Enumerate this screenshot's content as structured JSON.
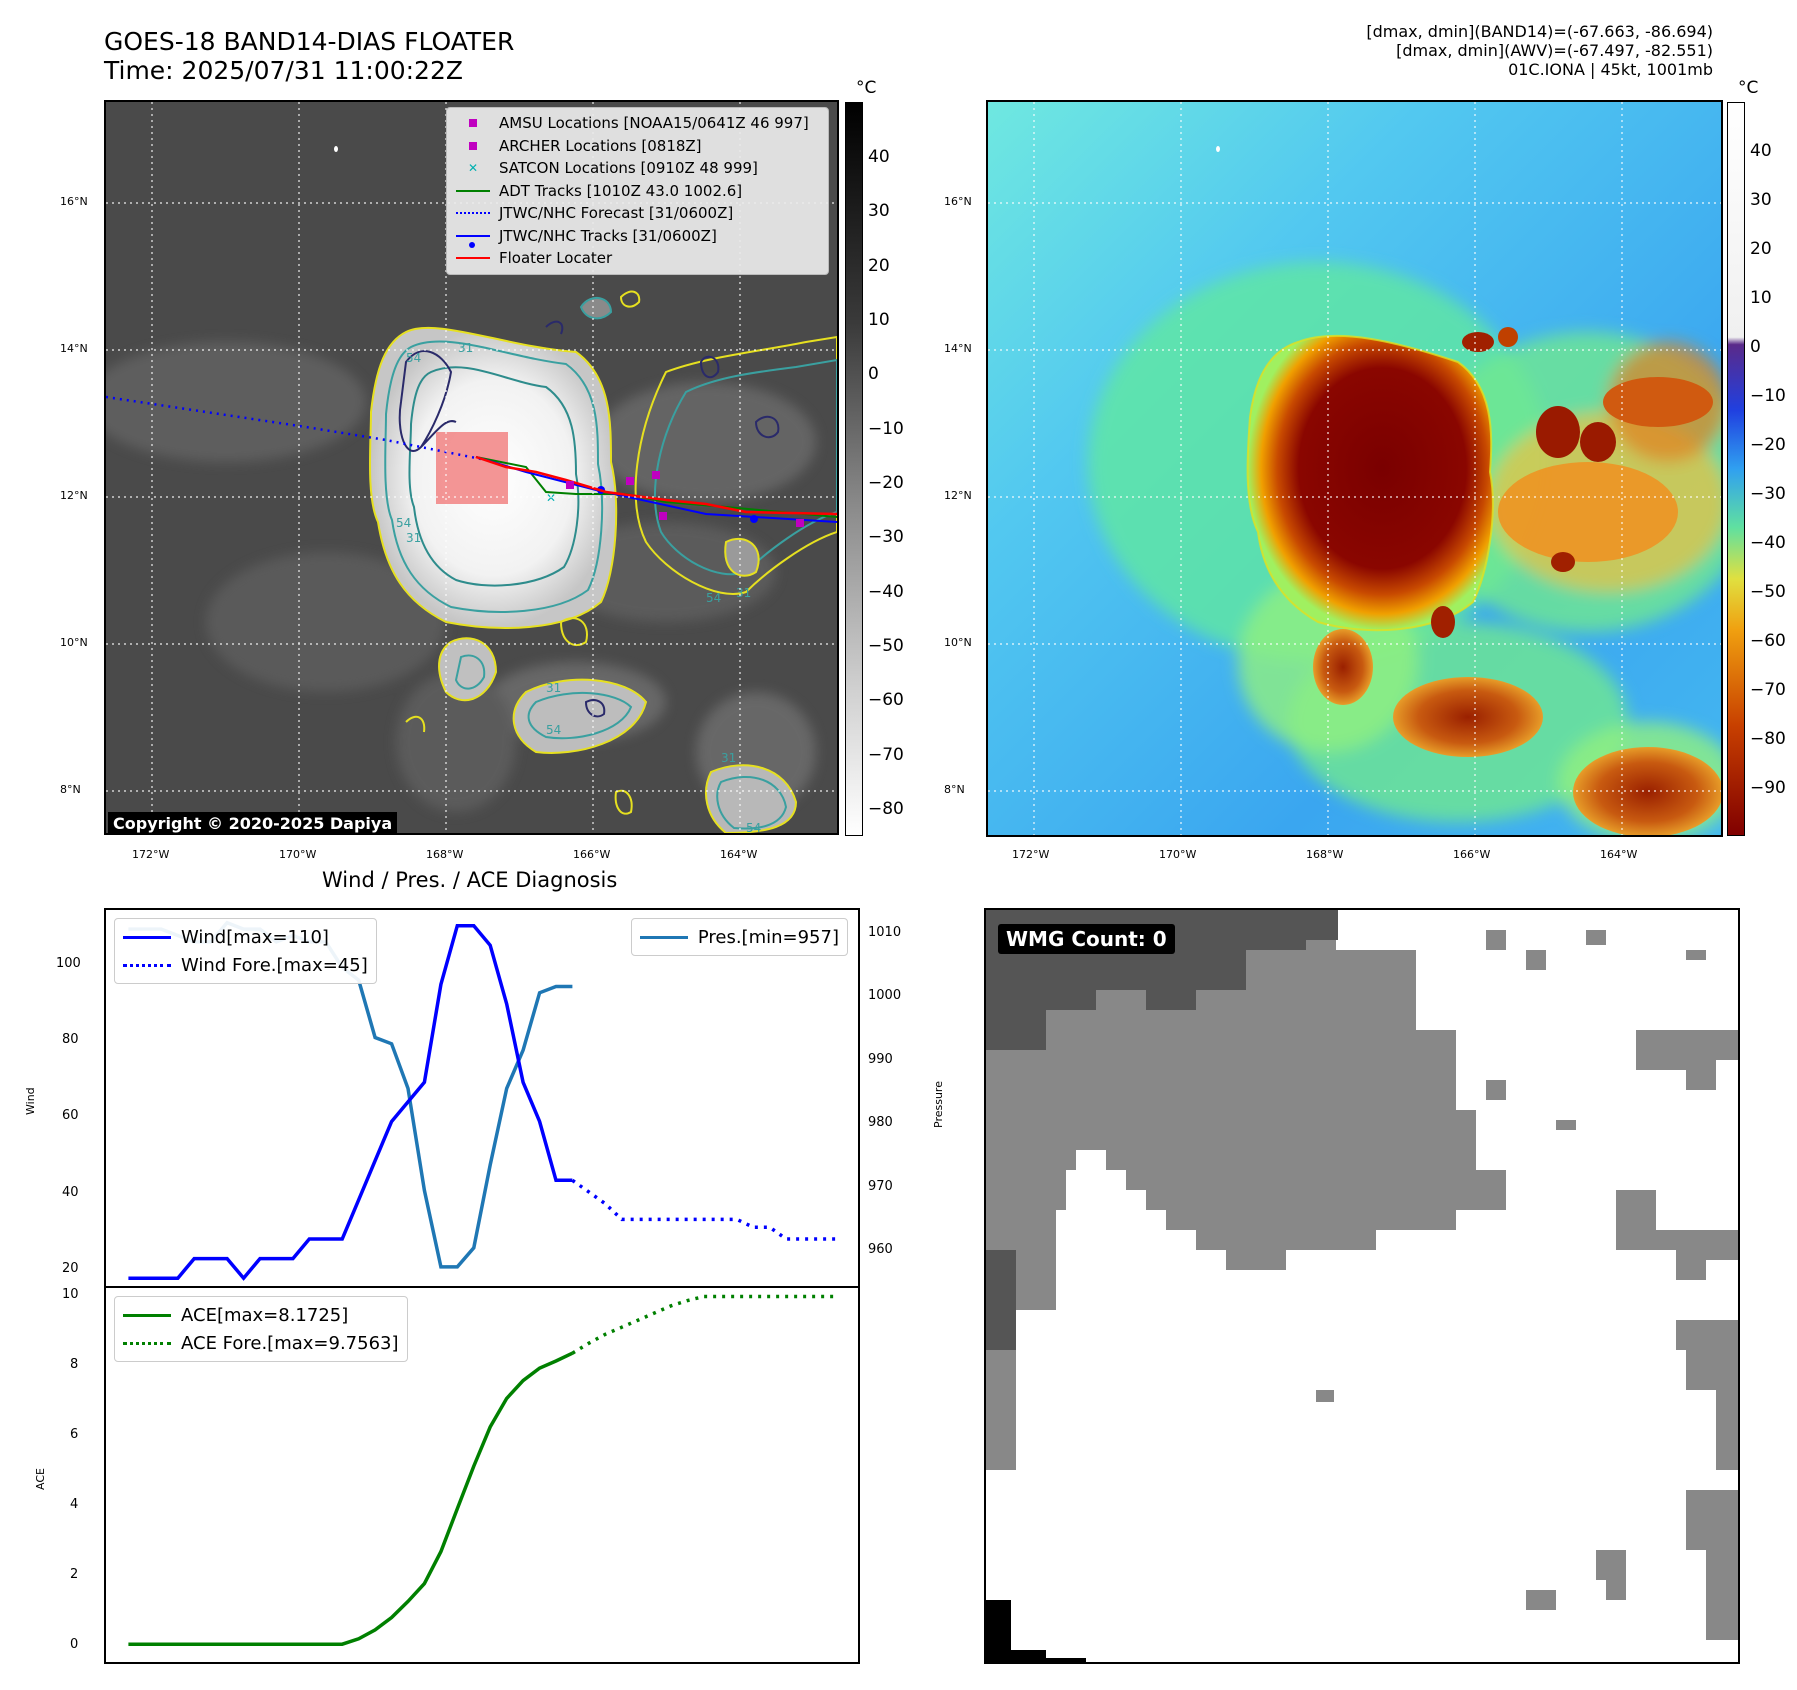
{
  "header": {
    "title_line1": "GOES-18 BAND14-DIAS FLOATER",
    "title_line2": "Time: 2025/07/31 11:00:22Z",
    "stats_line1": "[dmax, dmin](BAND14)=(-67.663, -86.694)",
    "stats_line2": "[dmax, dmin](AWV)=(-67.497, -82.551)",
    "stats_line3": "01C.IONA | 45kt, 1001mb"
  },
  "map_axes": {
    "lat_labels": [
      "16°N",
      "14°N",
      "12°N",
      "10°N",
      "8°N"
    ],
    "lon_labels": [
      "172°W",
      "170°W",
      "168°W",
      "166°W",
      "164°W"
    ]
  },
  "colorbar_left": {
    "unit": "°C",
    "ticks": [
      "40",
      "30",
      "20",
      "10",
      "0",
      "−10",
      "−20",
      "−30",
      "−40",
      "−50",
      "−60",
      "−70",
      "−80"
    ]
  },
  "colorbar_right": {
    "unit": "°C",
    "ticks": [
      "40",
      "30",
      "20",
      "10",
      "0",
      "−10",
      "−20",
      "−30",
      "−40",
      "−50",
      "−60",
      "−70",
      "−80",
      "−90"
    ]
  },
  "legend": {
    "items": [
      {
        "label": "AMSU Locations [NOAA15/0641Z 46 997]",
        "color": "#c000c0",
        "marker": "square"
      },
      {
        "label": "ARCHER Locations [0818Z]",
        "color": "#c000c0",
        "marker": "square"
      },
      {
        "label": "SATCON Locations [0910Z 48 999]",
        "color": "#00b0b0",
        "marker": "x"
      },
      {
        "label": "ADT Tracks [1010Z 43.0 1002.6]",
        "color": "#008000",
        "marker": "line"
      },
      {
        "label": "JTWC/NHC Forecast [31/0600Z]",
        "color": "#0000ff",
        "marker": "dotted"
      },
      {
        "label": "JTWC/NHC Tracks [31/0600Z]",
        "color": "#0000ff",
        "marker": "line-dot"
      },
      {
        "label": "Floater Locater",
        "color": "#ff0000",
        "marker": "line"
      }
    ]
  },
  "copyright": "Copyright © 2020-2025 Dapiya",
  "contour_labels": [
    "31",
    "54",
    "54",
    "31",
    "54",
    "31",
    "31",
    "54",
    "54",
    "31"
  ],
  "diag": {
    "title": "Wind / Pres. / ACE Diagnosis",
    "wind_ylabel": "Wind",
    "pres_ylabel": "Pressure",
    "ace_ylabel": "ACE",
    "legend_wind": "Wind[max=110]",
    "legend_wind_fore": "Wind Fore.[max=45]",
    "legend_pres": "Pres.[min=957]",
    "legend_ace": "ACE[max=8.1725]",
    "legend_ace_fore": "ACE Fore.[max=9.7563]",
    "wind_ticks": [
      "100",
      "80",
      "60",
      "40",
      "20"
    ],
    "pres_ticks": [
      "1010",
      "1000",
      "990",
      "980",
      "970",
      "960"
    ],
    "ace_ticks": [
      "10",
      "8",
      "6",
      "4",
      "2",
      "0"
    ]
  },
  "wmg": {
    "label": "WMG Count: 0"
  },
  "chart_data": [
    {
      "type": "line",
      "title": "Wind / Pres. / ACE Diagnosis",
      "ylabel": "Wind",
      "ylim": [
        18,
        114
      ],
      "series": [
        {
          "name": "Wind[max=110]",
          "color": "#0000ff",
          "style": "solid",
          "x": [
            0,
            1,
            2,
            3,
            4,
            5,
            6,
            7,
            8,
            9,
            10,
            11,
            12,
            13,
            14,
            15,
            16,
            17,
            18,
            19,
            20,
            21,
            22,
            23,
            24,
            25,
            26,
            27
          ],
          "values": [
            20,
            20,
            20,
            20,
            25,
            25,
            25,
            20,
            25,
            25,
            25,
            30,
            30,
            30,
            40,
            50,
            60,
            65,
            70,
            95,
            110,
            110,
            105,
            90,
            70,
            60,
            45,
            45
          ]
        },
        {
          "name": "Wind Fore.[max=45]",
          "color": "#0000ff",
          "style": "dotted",
          "x": [
            27,
            28,
            29,
            30,
            31,
            32,
            33,
            34,
            35,
            36,
            37,
            38,
            39,
            40,
            41,
            42,
            43
          ],
          "values": [
            45,
            42,
            39,
            35,
            35,
            35,
            35,
            35,
            35,
            35,
            35,
            33,
            33,
            30,
            30,
            30,
            30
          ]
        }
      ]
    },
    {
      "type": "line",
      "ylabel": "Pressure",
      "ylim": [
        954,
        1013
      ],
      "series": [
        {
          "name": "Pres.[min=957]",
          "color": "#1f77b4",
          "style": "solid",
          "x": [
            0,
            1,
            2,
            3,
            4,
            5,
            6,
            7,
            8,
            9,
            10,
            11,
            12,
            13,
            14,
            15,
            16,
            17,
            18,
            19,
            20,
            21,
            22,
            23,
            24,
            25,
            26,
            27
          ],
          "values": [
            1010,
            1010,
            1010,
            1009,
            1008,
            1008,
            1011,
            1010,
            1010,
            1008,
            1009,
            1008,
            1008,
            1004,
            1002,
            993,
            992,
            985,
            969,
            957,
            957,
            960,
            973,
            985,
            991,
            1000,
            1001,
            1001
          ]
        }
      ]
    },
    {
      "type": "line",
      "ylabel": "ACE",
      "ylim": [
        -0.5,
        10
      ],
      "series": [
        {
          "name": "ACE[max=8.1725]",
          "color": "#008000",
          "style": "solid",
          "x": [
            0,
            1,
            2,
            3,
            4,
            5,
            6,
            7,
            8,
            9,
            10,
            11,
            12,
            13,
            14,
            15,
            16,
            17,
            18,
            19,
            20,
            21,
            22,
            23,
            24,
            25,
            26,
            27
          ],
          "values": [
            0,
            0,
            0,
            0,
            0,
            0,
            0,
            0,
            0,
            0,
            0,
            0,
            0,
            0,
            0.15,
            0.4,
            0.75,
            1.2,
            1.7,
            2.6,
            3.8,
            5.0,
            6.1,
            6.9,
            7.4,
            7.75,
            7.95,
            8.17
          ]
        },
        {
          "name": "ACE Fore.[max=9.7563]",
          "color": "#008000",
          "style": "dotted",
          "x": [
            27,
            28,
            29,
            30,
            31,
            32,
            33,
            34,
            35,
            36,
            37,
            38,
            39,
            40,
            41,
            42,
            43
          ],
          "values": [
            8.17,
            8.45,
            8.7,
            8.9,
            9.1,
            9.3,
            9.5,
            9.65,
            9.76,
            9.76,
            9.76,
            9.76,
            9.76,
            9.76,
            9.76,
            9.76,
            9.76
          ]
        }
      ]
    }
  ]
}
